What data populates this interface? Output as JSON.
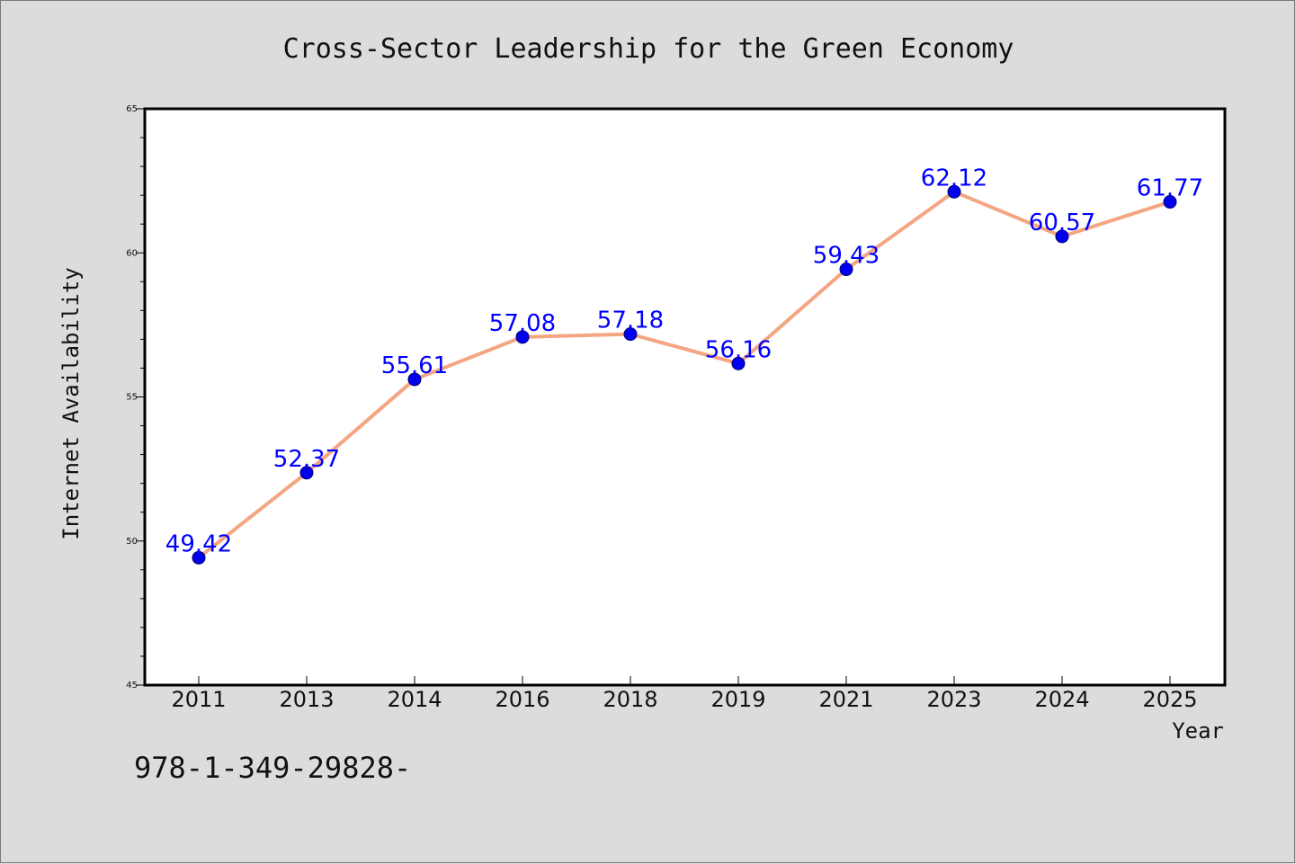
{
  "chart_data": {
    "type": "line",
    "title": "Cross-Sector Leadership for the Green Economy",
    "xlabel": "Year",
    "ylabel": "Internet Availability",
    "categories": [
      "2011",
      "2013",
      "2014",
      "2016",
      "2018",
      "2019",
      "2021",
      "2023",
      "2024",
      "2025"
    ],
    "series": [
      {
        "values": [
          49.42,
          52.37,
          55.61,
          57.08,
          57.18,
          56.16,
          59.43,
          62.12,
          60.57,
          61.77
        ],
        "data_labels": [
          "49.42",
          "52.37",
          "55.61",
          "57.08",
          "57.18",
          "56.16",
          "59.43",
          "62.12",
          "60.57",
          "61.77"
        ]
      }
    ],
    "ylim": [
      45,
      65
    ],
    "yticks": [
      45,
      50,
      55,
      60,
      65
    ],
    "ytick_labels": [
      "45",
      "50",
      "55",
      "60",
      "65"
    ],
    "grid": false,
    "line_color": "#f4a582",
    "marker_color": "#0000ee",
    "label_color": "#0000ff"
  },
  "footer_text": "978-1-349-29828-"
}
